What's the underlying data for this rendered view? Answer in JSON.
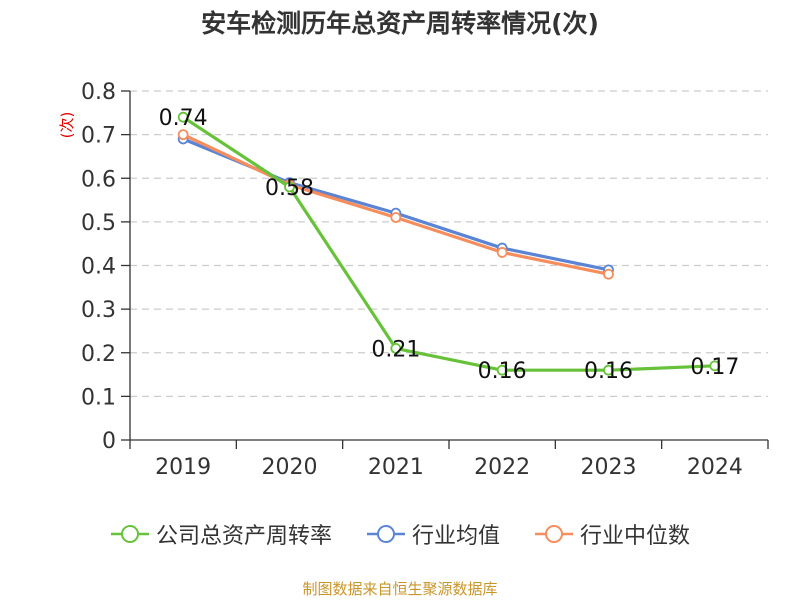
{
  "title": "安车检测历年总资产周转率情况(次)",
  "source": "制图数据来自恒生聚源数据库",
  "colors": {
    "company": "#67c23a",
    "industry_avg": "#5b84d4",
    "industry_median": "#f58d5c",
    "axis": "#333333",
    "grid": "#cccccc",
    "ylabel": "#e60000"
  },
  "chart_data": {
    "type": "line",
    "title": "安车检测历年总资产周转率情况(次)",
    "xlabel": "",
    "ylabel": "(次)",
    "categories": [
      "2019",
      "2020",
      "2021",
      "2022",
      "2023",
      "2024"
    ],
    "ylim": [
      0,
      0.8
    ],
    "yticks": [
      0,
      0.1,
      0.2,
      0.3,
      0.4,
      0.5,
      0.6,
      0.7,
      0.8
    ],
    "ytick_labels": [
      "0",
      "0.1",
      "0.2",
      "0.3",
      "0.4",
      "0.5",
      "0.6",
      "0.7",
      "0.8"
    ],
    "grid": "horizontal dashed",
    "legend_position": "bottom",
    "series": [
      {
        "name": "公司总资产周转率",
        "color_key": "company",
        "values": [
          0.74,
          0.58,
          0.21,
          0.16,
          0.16,
          0.17
        ],
        "data_labels": [
          "0.74",
          "0.58",
          "0.21",
          "0.16",
          "0.16",
          "0.17"
        ]
      },
      {
        "name": "行业均值",
        "color_key": "industry_avg",
        "values": [
          0.69,
          0.59,
          0.52,
          0.44,
          0.39,
          null
        ]
      },
      {
        "name": "行业中位数",
        "color_key": "industry_median",
        "values": [
          0.7,
          0.585,
          0.51,
          0.43,
          0.38,
          null
        ]
      }
    ]
  }
}
